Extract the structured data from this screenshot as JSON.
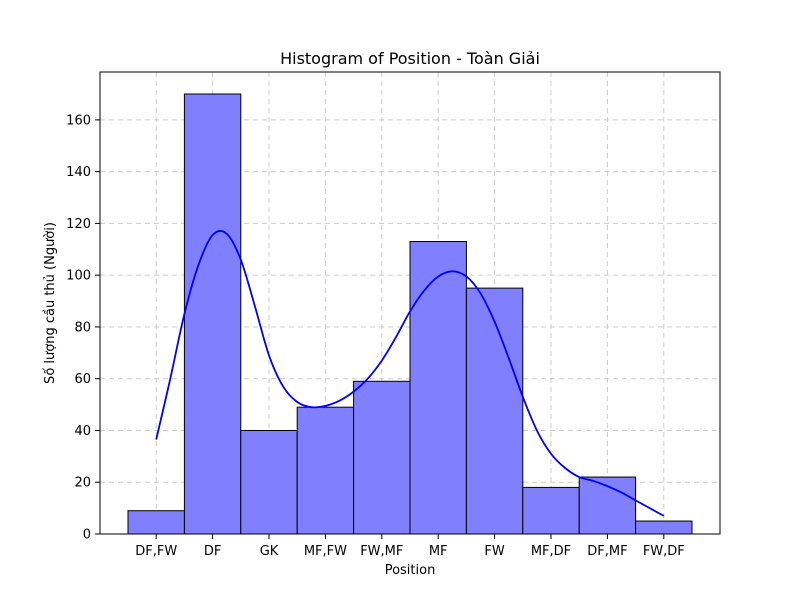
{
  "chart_data": {
    "type": "bar",
    "title": "Histogram of Position - Toàn Giải",
    "xlabel": "Position",
    "ylabel": "Số lượng cầu thủ (Người)",
    "categories": [
      "DF,FW",
      "DF",
      "GK",
      "MF,FW",
      "FW,MF",
      "MF",
      "FW",
      "MF,DF",
      "DF,MF",
      "FW,DF"
    ],
    "values": [
      9,
      170,
      40,
      49,
      59,
      113,
      95,
      18,
      22,
      5
    ],
    "kde": {
      "x": [
        0,
        0.25,
        0.5,
        0.75,
        1.0,
        1.25,
        1.5,
        1.75,
        2.0,
        2.25,
        2.5,
        2.75,
        3.0,
        3.25,
        3.5,
        3.75,
        4.0,
        4.25,
        4.5,
        4.75,
        5.0,
        5.25,
        5.5,
        5.75,
        6.0,
        6.25,
        6.5,
        6.75,
        7.0,
        7.25,
        7.5,
        7.75,
        8.0,
        8.25,
        8.5,
        8.75,
        9.0
      ],
      "y": [
        36.5,
        60,
        85,
        104,
        115.5,
        116,
        106,
        88,
        69,
        57,
        51,
        49,
        49.5,
        51.5,
        55,
        60,
        67,
        76,
        86,
        94,
        99.5,
        101.5,
        99.5,
        93,
        82,
        68,
        53,
        40,
        31,
        25.5,
        22,
        20.5,
        18.5,
        16,
        13,
        10,
        7
      ]
    },
    "ylim": [
      0,
      178.5
    ],
    "yticks": [
      0,
      20,
      40,
      60,
      80,
      100,
      120,
      140,
      160
    ],
    "grid": true,
    "colors": {
      "bar_fill": "#8080ff",
      "bar_edge": "#000000",
      "kde_line": "#0000ff",
      "grid": "#cccccc"
    }
  }
}
